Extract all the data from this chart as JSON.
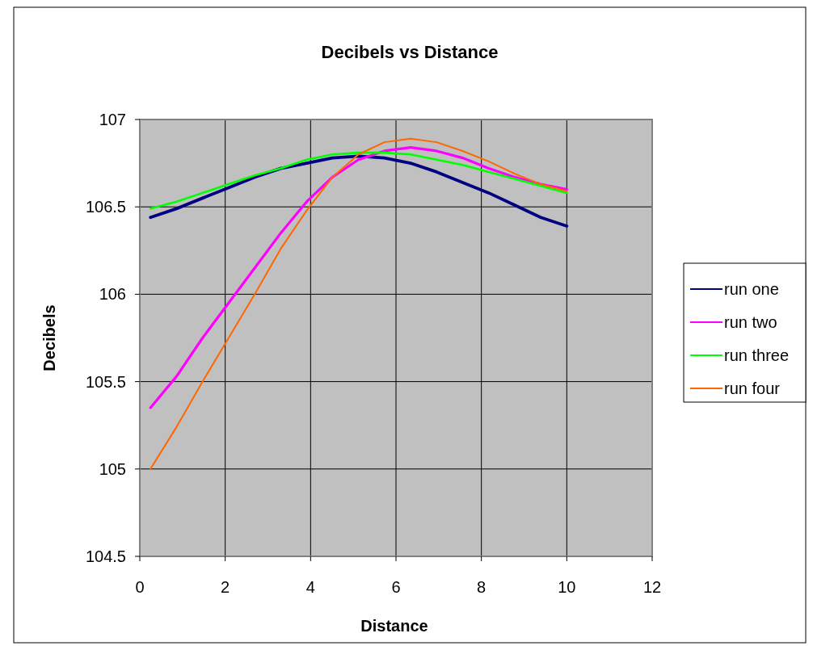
{
  "chart_data": {
    "type": "line",
    "title": "Decibels vs Distance",
    "xlabel": "Distance",
    "ylabel": "Decibels",
    "x": [
      0.25,
      0.86,
      1.47,
      2.08,
      2.69,
      3.3,
      3.91,
      4.51,
      5.12,
      5.73,
      6.34,
      6.95,
      7.56,
      8.17,
      8.78,
      9.39,
      10
    ],
    "xlim": [
      0,
      12
    ],
    "xticks": [
      0,
      2,
      4,
      6,
      8,
      10,
      12
    ],
    "ylim": [
      104.5,
      107
    ],
    "yticks": [
      104.5,
      105,
      105.5,
      106,
      106.5,
      107
    ],
    "grid": true,
    "legend": "right",
    "marker": "none",
    "line_style": "solid",
    "series": [
      {
        "name": "run one",
        "color": "#000080",
        "values": [
          106.44,
          106.49,
          106.55,
          106.61,
          106.67,
          106.72,
          106.75,
          106.78,
          106.79,
          106.78,
          106.75,
          106.7,
          106.64,
          106.58,
          106.51,
          106.44,
          106.39
        ]
      },
      {
        "name": "run two",
        "color": "#ff00ff",
        "values": [
          105.35,
          105.53,
          105.75,
          105.95,
          106.15,
          106.35,
          106.53,
          106.67,
          106.77,
          106.82,
          106.84,
          106.82,
          106.78,
          106.72,
          106.67,
          106.63,
          106.6
        ]
      },
      {
        "name": "run three",
        "color": "#00ff00",
        "values": [
          106.49,
          106.53,
          106.58,
          106.63,
          106.68,
          106.72,
          106.77,
          106.8,
          106.81,
          106.81,
          106.8,
          106.77,
          106.74,
          106.7,
          106.66,
          106.62,
          106.58
        ]
      },
      {
        "name": "run four",
        "color": "#ff6600",
        "values": [
          105.0,
          105.24,
          105.5,
          105.75,
          106.0,
          106.26,
          106.48,
          106.67,
          106.8,
          106.87,
          106.89,
          106.87,
          106.82,
          106.76,
          106.69,
          106.63,
          106.59
        ]
      }
    ]
  }
}
